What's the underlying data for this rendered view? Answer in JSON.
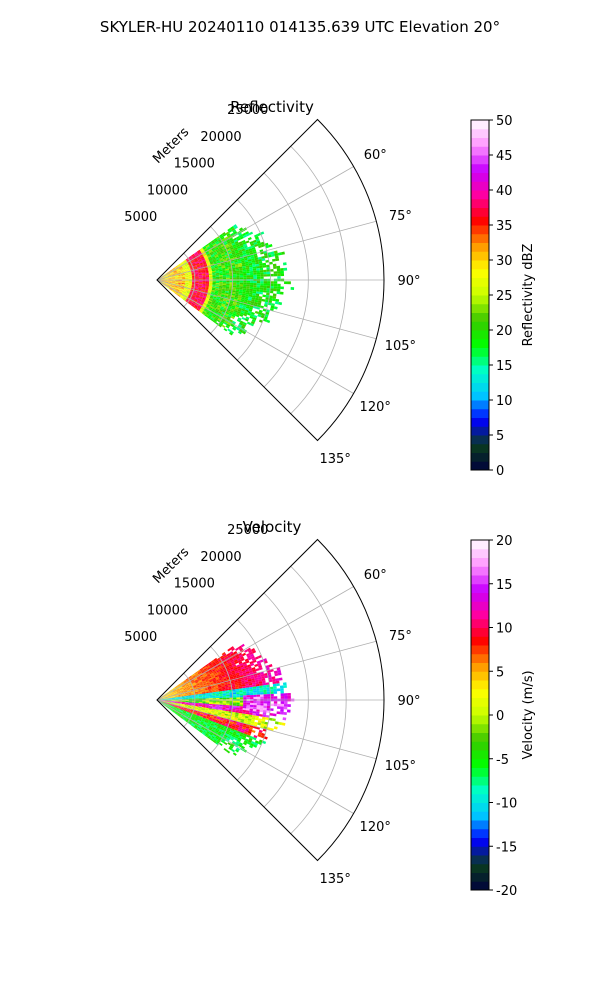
{
  "figure": {
    "title": "SKYLER-HU  20240110  014135.639 UTC Elevation 20°"
  },
  "chart_data": [
    {
      "type": "heatmap",
      "projection": "polar-sector",
      "title": "Reflectivity",
      "radial_label": "Meters",
      "radial_ticks": [
        5000,
        10000,
        15000,
        20000,
        25000
      ],
      "radial_tick_labels": [
        "5000",
        "10000",
        "15000",
        "20000",
        "25000"
      ],
      "radial_range": [
        0,
        30000
      ],
      "angle_range_deg": [
        45,
        135
      ],
      "angle_ticks_deg": [
        60,
        75,
        90,
        105,
        120,
        135
      ],
      "angle_tick_labels": [
        "60°",
        "75°",
        "90°",
        "105°",
        "120°",
        "135°"
      ],
      "grid": true,
      "colorbar": {
        "label": "Reflectivity dBZ",
        "range": [
          0,
          50
        ],
        "ticks": [
          0,
          5,
          10,
          15,
          20,
          25,
          30,
          35,
          40,
          45,
          50
        ],
        "tick_labels": [
          "0",
          "5",
          "10",
          "15",
          "20",
          "25",
          "30",
          "35",
          "40",
          "45",
          "50"
        ]
      }
    },
    {
      "type": "heatmap",
      "projection": "polar-sector",
      "title": "Velocity",
      "radial_label": "Meters",
      "radial_ticks": [
        5000,
        10000,
        15000,
        20000,
        25000
      ],
      "radial_tick_labels": [
        "5000",
        "10000",
        "15000",
        "20000",
        "25000"
      ],
      "radial_range": [
        0,
        30000
      ],
      "angle_range_deg": [
        45,
        135
      ],
      "angle_ticks_deg": [
        60,
        75,
        90,
        105,
        120,
        135
      ],
      "angle_tick_labels": [
        "60°",
        "75°",
        "90°",
        "105°",
        "120°",
        "135°"
      ],
      "grid": true,
      "colorbar": {
        "label": "Velocity (m/s)",
        "range": [
          -20,
          20
        ],
        "ticks": [
          -20,
          -15,
          -10,
          -5,
          0,
          5,
          10,
          15,
          20
        ],
        "tick_labels": [
          "-20",
          "-15",
          "-10",
          "-5",
          "0",
          "5",
          "10",
          "15",
          "20"
        ]
      }
    }
  ],
  "colors": {
    "nws_stops": [
      "#00003c",
      "#0a3d1e",
      "#0000ff",
      "#00c8ff",
      "#00ffc8",
      "#00ff00",
      "#3cc800",
      "#c8ff00",
      "#ffff00",
      "#ff9600",
      "#ff0000",
      "#ff00a0",
      "#c800ff",
      "#ff96ff",
      "#ffffff"
    ]
  }
}
